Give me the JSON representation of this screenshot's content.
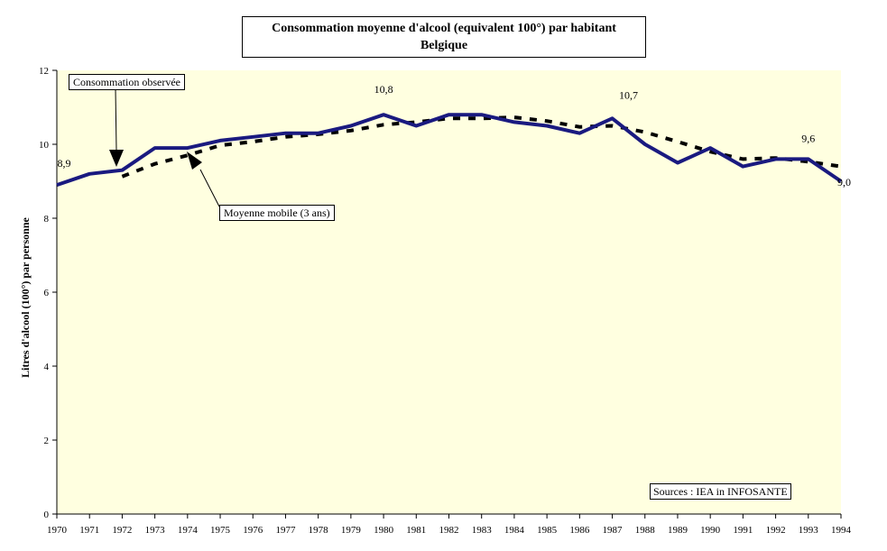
{
  "chart_data": {
    "type": "line",
    "title": "Consommation moyenne d'alcool (equivalent 100°) par habitant",
    "subtitle": "Belgique",
    "ylabel": "Litres d'alcool (100°) par personne",
    "xlabel": "",
    "ylim": [
      0,
      12
    ],
    "yticks": [
      "0",
      "2",
      "4",
      "6",
      "8",
      "10",
      "12"
    ],
    "x": [
      "1970",
      "1971",
      "1972",
      "1973",
      "1974",
      "1975",
      "1976",
      "1977",
      "1978",
      "1979",
      "1980",
      "1981",
      "1982",
      "1983",
      "1984",
      "1985",
      "1986",
      "1987",
      "1988",
      "1989",
      "1990",
      "1991",
      "1992",
      "1993",
      "1994"
    ],
    "grid": false,
    "plot_background": "#ffffe0",
    "series": [
      {
        "name": "Consommation observée",
        "color": "#1a1a80",
        "style": "solid",
        "values": [
          8.9,
          9.2,
          9.3,
          9.9,
          9.9,
          10.1,
          10.2,
          10.3,
          10.3,
          10.5,
          10.8,
          10.5,
          10.8,
          10.8,
          10.6,
          10.5,
          10.3,
          10.7,
          10.0,
          9.5,
          9.9,
          9.4,
          9.6,
          9.6,
          9.0
        ]
      },
      {
        "name": "Moyenne mobile (3 ans)",
        "color": "#000000",
        "style": "dashed",
        "values": [
          null,
          null,
          9.13,
          9.47,
          9.7,
          9.97,
          10.07,
          10.2,
          10.27,
          10.37,
          10.53,
          10.6,
          10.7,
          10.7,
          10.73,
          10.63,
          10.47,
          10.5,
          10.33,
          10.07,
          9.8,
          9.6,
          9.63,
          9.53,
          9.4
        ]
      }
    ],
    "data_labels": [
      {
        "x": "1970",
        "text": "8,9"
      },
      {
        "x": "1980",
        "text": "10,8"
      },
      {
        "x": "1987",
        "text": "10,7"
      },
      {
        "x": "1993",
        "text": "9,6"
      },
      {
        "x": "1994",
        "text": "9,0"
      }
    ],
    "annotations": {
      "observed": "Consommation observée",
      "moving_average": "Moyenne mobile (3 ans)",
      "source": "Sources : IEA in INFOSANTE"
    }
  }
}
